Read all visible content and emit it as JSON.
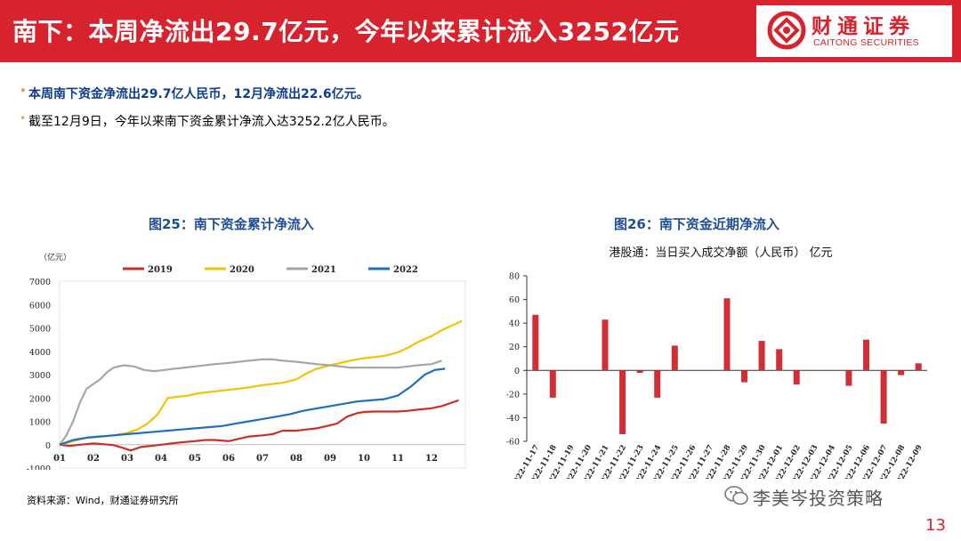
{
  "header": {
    "title": "南下：本周净流出29.7亿元，今年以来累计流入3252亿元",
    "logo_cn": "财通证券",
    "logo_en": "CAITONG SECURITIES",
    "brand_color": "#d7232e"
  },
  "bullets": [
    "本周南下资金净流出29.7亿人民币，12月净流出22.6亿元。",
    "截至12月9日，今年以来南下资金累计净流入达3252.2亿人民币。"
  ],
  "source": "资料来源：Wind，财通证券研究所",
  "watermark": "李美岑投资策略",
  "page_number": "13",
  "chart_data": [
    {
      "type": "line",
      "title": "图25：南下资金累计净流入",
      "ylabel": "（亿元）",
      "ylim": [
        -1000,
        7000
      ],
      "yticks": [
        -1000,
        0,
        1000,
        2000,
        3000,
        4000,
        5000,
        6000,
        7000
      ],
      "xticks": [
        "01",
        "02",
        "03",
        "04",
        "05",
        "06",
        "07",
        "08",
        "09",
        "10",
        "11",
        "12"
      ],
      "xrange": [
        0,
        12
      ],
      "legend_position": "top",
      "series": [
        {
          "name": "2019",
          "color": "#c9302c",
          "x": [
            0,
            0.3,
            0.6,
            1,
            1.3,
            1.6,
            1.9,
            2.1,
            2.4,
            2.7,
            3,
            3.3,
            3.6,
            4,
            4.3,
            4.6,
            5,
            5.3,
            5.6,
            6,
            6.3,
            6.6,
            7,
            7.3,
            7.6,
            7.9,
            8.2,
            8.5,
            8.8,
            9,
            9.3,
            9.6,
            10,
            10.3,
            10.6,
            11,
            11.3,
            11.6,
            11.8
          ],
          "y": [
            0,
            -50,
            0,
            50,
            20,
            -20,
            -150,
            -250,
            -100,
            -50,
            0,
            50,
            100,
            150,
            200,
            200,
            150,
            250,
            350,
            400,
            450,
            600,
            600,
            650,
            700,
            800,
            900,
            1200,
            1350,
            1400,
            1420,
            1420,
            1420,
            1450,
            1500,
            1560,
            1650,
            1800,
            1900
          ]
        },
        {
          "name": "2020",
          "color": "#f2c300",
          "x": [
            0,
            0.4,
            0.8,
            1.1,
            1.4,
            1.7,
            2,
            2.3,
            2.6,
            2.9,
            3.2,
            3.5,
            3.8,
            4.1,
            4.4,
            4.7,
            5,
            5.3,
            5.6,
            6,
            6.3,
            6.6,
            7,
            7.3,
            7.6,
            8,
            8.3,
            8.6,
            9,
            9.3,
            9.6,
            10,
            10.3,
            10.6,
            11,
            11.3,
            11.6,
            11.9
          ],
          "y": [
            0,
            150,
            300,
            350,
            380,
            420,
            500,
            650,
            900,
            1300,
            2000,
            2050,
            2100,
            2200,
            2250,
            2300,
            2350,
            2400,
            2450,
            2550,
            2600,
            2650,
            2800,
            3050,
            3250,
            3400,
            3500,
            3600,
            3700,
            3750,
            3800,
            3950,
            4150,
            4400,
            4650,
            4900,
            5100,
            5300
          ]
        },
        {
          "name": "2021",
          "color": "#a6a6a6",
          "x": [
            0,
            0.2,
            0.4,
            0.6,
            0.8,
            1,
            1.2,
            1.4,
            1.6,
            1.9,
            2.2,
            2.5,
            2.8,
            3.1,
            3.4,
            3.7,
            4,
            4.3,
            4.6,
            5,
            5.3,
            5.6,
            6,
            6.3,
            6.6,
            7,
            7.3,
            7.6,
            8,
            8.3,
            8.6,
            9,
            9.3,
            9.6,
            10,
            10.3,
            10.6,
            11,
            11.3
          ],
          "y": [
            0,
            400,
            1000,
            1800,
            2400,
            2600,
            2800,
            3100,
            3300,
            3400,
            3350,
            3200,
            3150,
            3200,
            3250,
            3300,
            3350,
            3400,
            3450,
            3500,
            3550,
            3600,
            3650,
            3650,
            3600,
            3550,
            3500,
            3450,
            3400,
            3350,
            3300,
            3300,
            3300,
            3300,
            3300,
            3350,
            3400,
            3450,
            3600
          ]
        },
        {
          "name": "2022",
          "color": "#1f6fbf",
          "x": [
            0,
            0.4,
            0.8,
            1.2,
            1.6,
            2,
            2.4,
            2.8,
            3.2,
            3.6,
            4,
            4.4,
            4.8,
            5.2,
            5.6,
            6,
            6.4,
            6.8,
            7.2,
            7.6,
            8,
            8.4,
            8.8,
            9.2,
            9.6,
            10,
            10.4,
            10.8,
            11.1,
            11.4
          ],
          "y": [
            0,
            200,
            300,
            350,
            400,
            450,
            500,
            550,
            600,
            650,
            700,
            750,
            800,
            900,
            1000,
            1100,
            1200,
            1300,
            1450,
            1550,
            1650,
            1750,
            1850,
            1900,
            1950,
            2100,
            2500,
            3000,
            3200,
            3252
          ]
        }
      ]
    },
    {
      "type": "bar",
      "title": "图26：南下资金近期净流入",
      "subtitle": "港股通：当日买入成交净额（人民币） 亿元",
      "ylim": [
        -60,
        80
      ],
      "yticks": [
        -60,
        -40,
        -20,
        0,
        20,
        40,
        60,
        80
      ],
      "categories": [
        "2022-11-17",
        "2022-11-18",
        "2022-11-19",
        "2022-11-20",
        "2022-11-21",
        "2022-11-22",
        "2022-11-23",
        "2022-11-24",
        "2022-11-25",
        "2022-11-26",
        "2022-11-27",
        "2022-11-28",
        "2022-11-29",
        "2022-11-30",
        "2022-12-01",
        "2022-12-02",
        "2022-12-03",
        "2022-12-04",
        "2022-12-05",
        "2022-12-06",
        "2022-12-07",
        "2022-12-08",
        "2022-12-09"
      ],
      "values": [
        47,
        -23,
        0,
        0,
        43,
        -54,
        -2,
        -23,
        21,
        0,
        0,
        61,
        -10,
        25,
        18,
        -12,
        0,
        0,
        -13,
        26,
        -45,
        -4,
        6
      ],
      "color": "#d12e35"
    }
  ]
}
